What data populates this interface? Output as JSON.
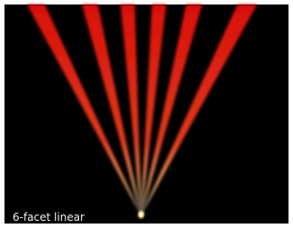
{
  "caption": "6-facet linear"
}
